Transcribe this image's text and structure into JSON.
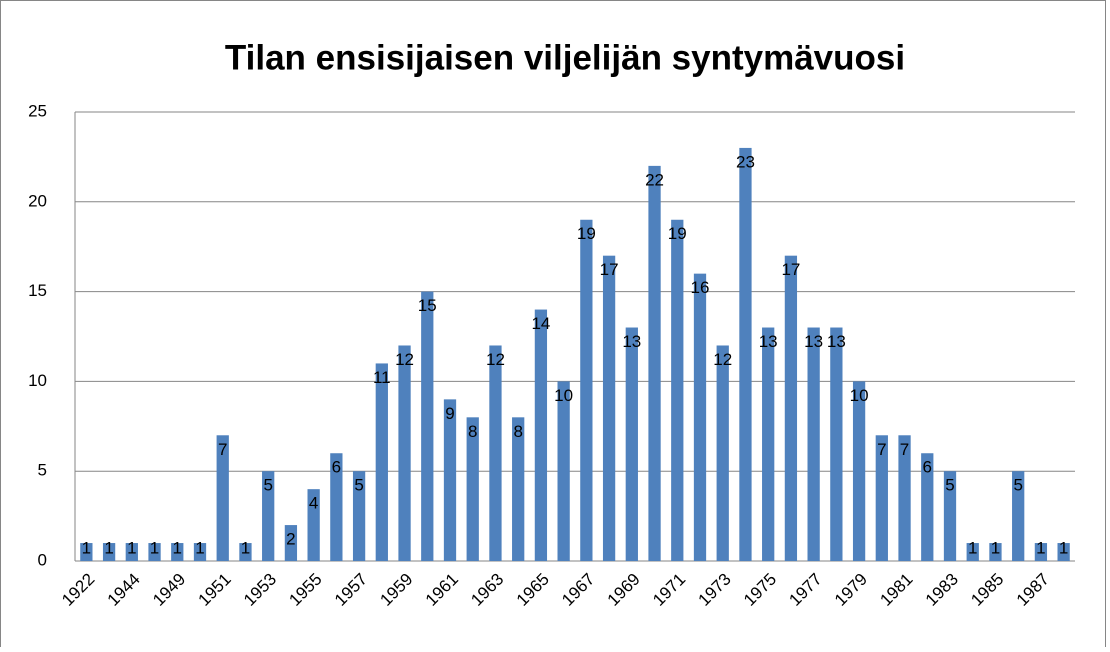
{
  "chart_data": {
    "type": "bar",
    "title": "Tilan ensisijaisen viljelijän syntymävuosi",
    "categories": [
      "1922",
      null,
      "1944",
      null,
      "1949",
      null,
      "1951",
      null,
      "1953",
      null,
      "1955",
      null,
      "1957",
      null,
      "1959",
      null,
      "1961",
      null,
      "1963",
      null,
      "1965",
      null,
      "1967",
      null,
      "1969",
      null,
      "1971",
      null,
      "1973",
      null,
      "1975",
      null,
      "1977",
      null,
      "1979",
      null,
      "1981",
      null,
      "1983",
      null,
      "1985",
      null,
      "1987",
      null
    ],
    "values": [
      1,
      1,
      1,
      1,
      1,
      1,
      7,
      1,
      5,
      2,
      4,
      6,
      5,
      11,
      12,
      15,
      9,
      8,
      12,
      8,
      14,
      10,
      19,
      17,
      13,
      22,
      19,
      16,
      12,
      23,
      13,
      17,
      13,
      13,
      10,
      7,
      7,
      6,
      5,
      1,
      1,
      5,
      1,
      1
    ],
    "color": "#4f81bd",
    "ylim": [
      0,
      25
    ],
    "yticks": [
      0,
      5,
      10,
      15,
      20,
      25
    ],
    "grid": true
  }
}
